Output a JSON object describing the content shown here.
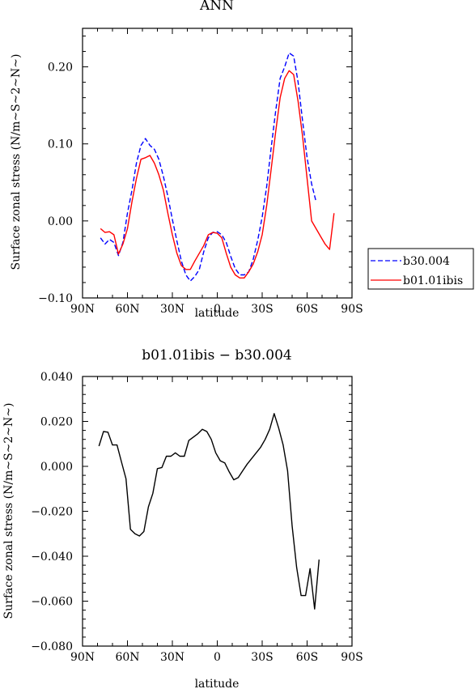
{
  "chart_data": [
    {
      "type": "line",
      "title": "ANN",
      "xlabel": "latitude",
      "ylabel": "Surface zonal stress (N/m~S~2~N~)",
      "xlim": [
        90,
        -90
      ],
      "ylim": [
        -0.1,
        0.25
      ],
      "x_ticks": [
        {
          "value": 90,
          "label": "90N"
        },
        {
          "value": 60,
          "label": "60N"
        },
        {
          "value": 30,
          "label": "30N"
        },
        {
          "value": 0,
          "label": "0"
        },
        {
          "value": -30,
          "label": "30S"
        },
        {
          "value": -60,
          "label": "60S"
        },
        {
          "value": -90,
          "label": "90S"
        }
      ],
      "y_ticks": [
        {
          "value": -0.1,
          "label": "−0.10"
        },
        {
          "value": 0.0,
          "label": "0.00"
        },
        {
          "value": 0.1,
          "label": "0.10"
        },
        {
          "value": 0.2,
          "label": "0.20"
        }
      ],
      "legend": "right",
      "series": [
        {
          "name": "b30.004",
          "color": "#0000ff",
          "dash": "dashed",
          "x": [
            78,
            75,
            72,
            69,
            66,
            63,
            60,
            57,
            54,
            51,
            48,
            45,
            42,
            39,
            36,
            33,
            30,
            27,
            24,
            21,
            18,
            15,
            12,
            9,
            6,
            3,
            0,
            -3,
            -6,
            -9,
            -12,
            -15,
            -18,
            -21,
            -24,
            -27,
            -30,
            -33,
            -36,
            -39,
            -42,
            -45,
            -48,
            -51,
            -54,
            -57,
            -60,
            -63,
            -66
          ],
          "y": [
            -0.022,
            -0.03,
            -0.024,
            -0.028,
            -0.045,
            -0.028,
            0.01,
            0.04,
            0.075,
            0.098,
            0.107,
            0.098,
            0.093,
            0.08,
            0.058,
            0.032,
            0.002,
            -0.026,
            -0.052,
            -0.07,
            -0.078,
            -0.072,
            -0.063,
            -0.04,
            -0.022,
            -0.015,
            -0.014,
            -0.018,
            -0.028,
            -0.046,
            -0.062,
            -0.07,
            -0.07,
            -0.066,
            -0.05,
            -0.025,
            0.005,
            0.045,
            0.095,
            0.142,
            0.185,
            0.2,
            0.218,
            0.214,
            0.18,
            0.13,
            0.082,
            0.048,
            0.025
          ]
        },
        {
          "name": "b01.01ibis",
          "color": "#ff0000",
          "dash": "solid",
          "x": [
            78,
            75,
            72,
            69,
            66,
            63,
            60,
            57,
            54,
            51,
            48,
            45,
            42,
            39,
            36,
            33,
            30,
            27,
            24,
            21,
            18,
            15,
            12,
            9,
            6,
            3,
            0,
            -3,
            -6,
            -9,
            -12,
            -15,
            -18,
            -21,
            -24,
            -27,
            -30,
            -33,
            -36,
            -39,
            -42,
            -45,
            -48,
            -51,
            -54,
            -57,
            -60,
            -63,
            -66,
            -69,
            -72,
            -75,
            -78
          ],
          "y": [
            -0.01,
            -0.015,
            -0.014,
            -0.018,
            -0.043,
            -0.03,
            -0.01,
            0.025,
            0.055,
            0.08,
            0.082,
            0.085,
            0.075,
            0.06,
            0.04,
            0.01,
            -0.018,
            -0.042,
            -0.058,
            -0.063,
            -0.063,
            -0.052,
            -0.042,
            -0.032,
            -0.018,
            -0.015,
            -0.016,
            -0.022,
            -0.042,
            -0.06,
            -0.07,
            -0.074,
            -0.074,
            -0.066,
            -0.056,
            -0.04,
            -0.018,
            0.02,
            0.067,
            0.115,
            0.16,
            0.185,
            0.195,
            0.19,
            0.155,
            0.11,
            0.055,
            0.0,
            -0.01,
            -0.02,
            -0.03,
            -0.037,
            0.01
          ]
        }
      ]
    },
    {
      "type": "line",
      "title": "b01.01ibis − b30.004",
      "xlabel": "latitude",
      "ylabel": "Surface zonal stress (N/m~S~2~N~)",
      "xlim": [
        90,
        -90
      ],
      "ylim": [
        -0.08,
        0.04
      ],
      "x_ticks": [
        {
          "value": 90,
          "label": "90N"
        },
        {
          "value": 60,
          "label": "60N"
        },
        {
          "value": 30,
          "label": "30N"
        },
        {
          "value": 0,
          "label": "0"
        },
        {
          "value": -30,
          "label": "30S"
        },
        {
          "value": -60,
          "label": "60S"
        },
        {
          "value": -90,
          "label": "90S"
        }
      ],
      "y_ticks": [
        {
          "value": -0.08,
          "label": "−0.080"
        },
        {
          "value": -0.06,
          "label": "−0.060"
        },
        {
          "value": -0.04,
          "label": "−0.040"
        },
        {
          "value": -0.02,
          "label": "−0.020"
        },
        {
          "value": 0.0,
          "label": "0.000"
        },
        {
          "value": 0.02,
          "label": "0.020"
        },
        {
          "value": 0.04,
          "label": "0.040"
        }
      ],
      "series": [
        {
          "color": "#000000",
          "dash": "solid",
          "x": [
            79,
            76,
            73,
            70,
            67,
            64,
            61,
            58,
            55,
            52,
            49,
            46,
            43,
            40,
            37,
            34,
            31,
            28,
            25,
            22,
            19,
            16,
            13,
            10,
            7,
            4,
            1,
            -2,
            -5,
            -8,
            -11,
            -14,
            -17,
            -20,
            -23,
            -26,
            -29,
            -32,
            -35,
            -38,
            -41,
            -44,
            -47,
            -50,
            -53,
            -56,
            -59,
            -62,
            -65,
            -68
          ],
          "y": [
            0.009,
            0.0155,
            0.0152,
            0.0095,
            0.0095,
            0.002,
            -0.0055,
            -0.028,
            -0.03,
            -0.031,
            -0.029,
            -0.018,
            -0.012,
            -0.001,
            -0.0005,
            0.0045,
            0.0045,
            0.006,
            0.0045,
            0.0045,
            0.0115,
            0.013,
            0.0145,
            0.0165,
            0.0155,
            0.012,
            0.006,
            0.0025,
            0.0015,
            -0.0025,
            -0.006,
            -0.005,
            -0.002,
            0.001,
            0.0035,
            0.006,
            0.0085,
            0.012,
            0.0165,
            0.0235,
            0.017,
            0.0095,
            -0.002,
            -0.0265,
            -0.045,
            -0.0575,
            -0.0575,
            -0.0455,
            -0.0635,
            -0.0415
          ]
        }
      ]
    }
  ]
}
